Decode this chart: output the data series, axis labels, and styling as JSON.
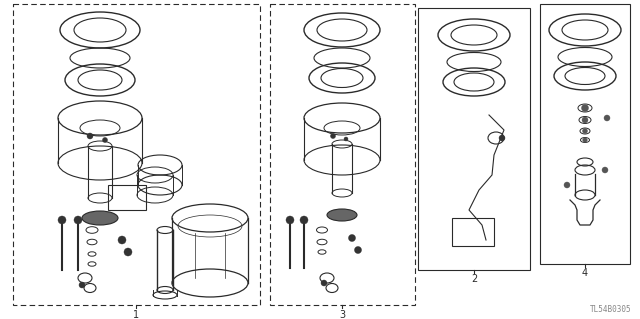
{
  "bg_color": "#ffffff",
  "line_color": "#2a2a2a",
  "fig_width": 6.4,
  "fig_height": 3.19,
  "watermark": "TL54B0305",
  "dpi": 100
}
